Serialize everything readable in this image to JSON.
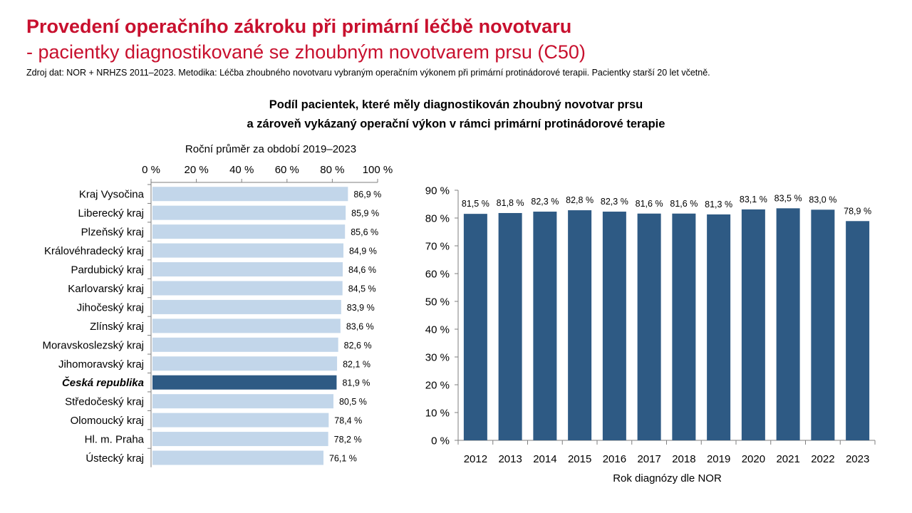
{
  "header": {
    "title_line1": "Provedení operačního zákroku při primární léčbě novotvaru",
    "title_line2": "- pacientky diagnostikované se zhoubným novotvarem prsu (C50)",
    "source": "Zdroj dat: NOR + NRHZS 2011–2023. Metodika: Léčba zhoubného novotvaru vybraným operačním výkonem při primární protinádorové terapii. Pacientky starší 20 let včetně."
  },
  "subtitle": {
    "line1": "Podíl pacientek, které měly diagnostikován zhoubný novotvar prsu",
    "line2": "a zároveň vykázaný operační výkon v rámci primární protinádorové terapie"
  },
  "colors": {
    "title": "#c8102e",
    "bar_light": "#c2d6ea",
    "bar_dark": "#2e5a84"
  },
  "chart_data": [
    {
      "type": "bar",
      "orientation": "horizontal",
      "title": "Roční průměr za období 2019–2023",
      "xlim": [
        0,
        100
      ],
      "ticks": [
        0,
        20,
        40,
        60,
        80,
        100
      ],
      "tick_labels": [
        "0 %",
        "20 %",
        "40 %",
        "60 %",
        "80 %",
        "100 %"
      ],
      "categories": [
        "Kraj Vysočina",
        "Liberecký kraj",
        "Plzeňský kraj",
        "Královéhradecký kraj",
        "Pardubický kraj",
        "Karlovarský kraj",
        "Jihočeský kraj",
        "Zlínský kraj",
        "Moravskoslezský kraj",
        "Jihomoravský kraj",
        "Česká republika",
        "Středočeský kraj",
        "Olomoucký kraj",
        "Hl. m. Praha",
        "Ústecký kraj"
      ],
      "values": [
        86.9,
        85.9,
        85.6,
        84.9,
        84.6,
        84.5,
        83.9,
        83.6,
        82.6,
        82.1,
        81.9,
        80.5,
        78.4,
        78.2,
        76.1
      ],
      "value_labels": [
        "86,9 %",
        "85,9 %",
        "85,6 %",
        "84,9 %",
        "84,6 %",
        "84,5 %",
        "83,9 %",
        "83,6 %",
        "82,6 %",
        "82,1 %",
        "81,9 %",
        "80,5 %",
        "78,4 %",
        "78,2 %",
        "76,1 %"
      ],
      "highlight": "Česká republika"
    },
    {
      "type": "bar",
      "orientation": "vertical",
      "xlabel": "Rok diagnózy dle NOR",
      "ylim": [
        0,
        90
      ],
      "ticks": [
        0,
        10,
        20,
        30,
        40,
        50,
        60,
        70,
        80,
        90
      ],
      "tick_labels": [
        "0 %",
        "10 %",
        "20 %",
        "30 %",
        "40 %",
        "50 %",
        "60 %",
        "70 %",
        "80 %",
        "90 %"
      ],
      "categories": [
        "2012",
        "2013",
        "2014",
        "2015",
        "2016",
        "2017",
        "2018",
        "2019",
        "2020",
        "2021",
        "2022",
        "2023"
      ],
      "values": [
        81.5,
        81.8,
        82.3,
        82.8,
        82.3,
        81.6,
        81.6,
        81.3,
        83.1,
        83.5,
        83.0,
        78.9
      ],
      "value_labels": [
        "81,5 %",
        "81,8 %",
        "82,3 %",
        "82,8 %",
        "82,3 %",
        "81,6 %",
        "81,6 %",
        "81,3 %",
        "83,1 %",
        "83,5 %",
        "83,0 %",
        "78,9 %"
      ]
    }
  ]
}
